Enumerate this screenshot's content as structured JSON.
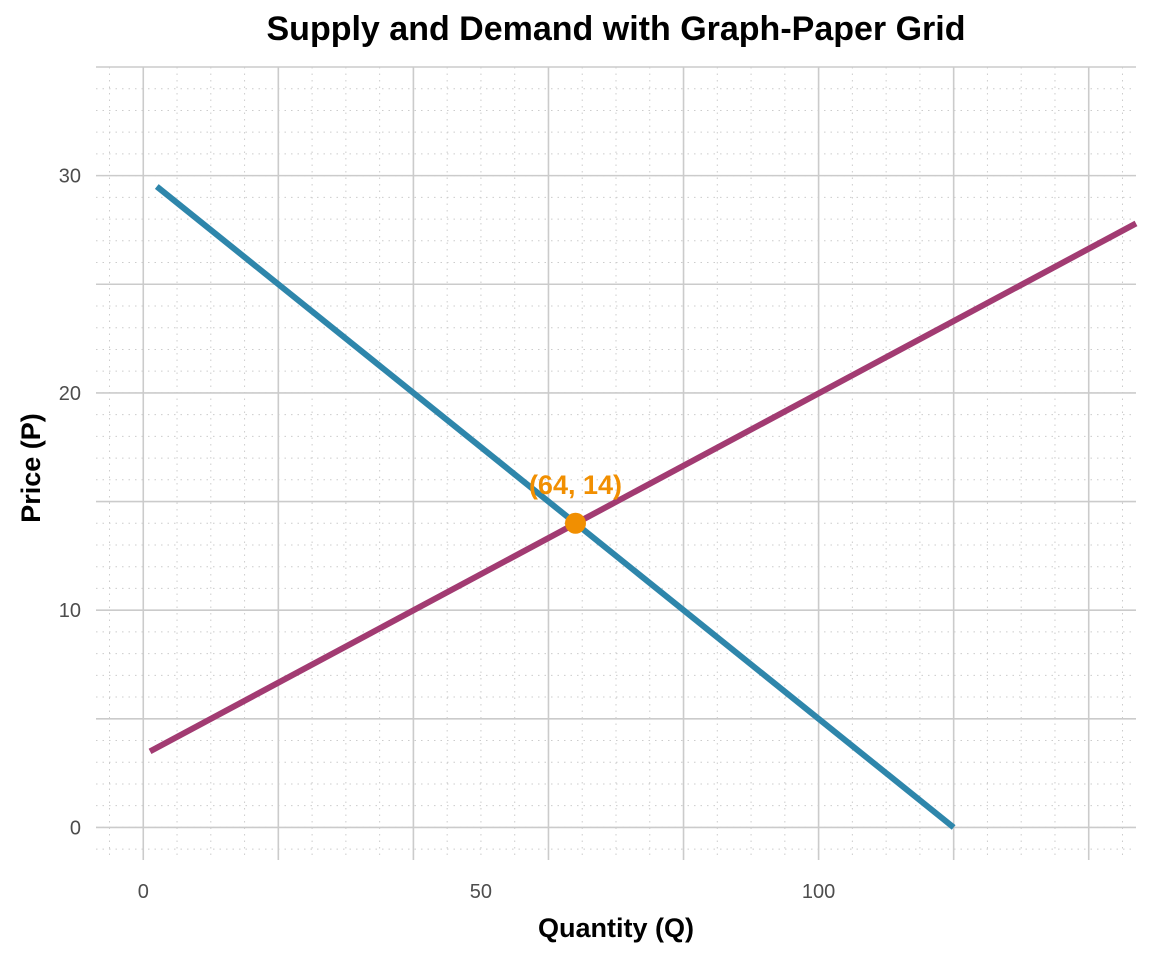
{
  "chart_data": {
    "type": "line",
    "title": "Supply and Demand with Graph-Paper Grid",
    "xlabel": "Quantity (Q)",
    "ylabel": "Price (P)",
    "xlim": [
      -7,
      147
    ],
    "ylim": [
      -1.5,
      35
    ],
    "x_ticks": [
      0,
      50,
      100
    ],
    "y_ticks": [
      0,
      10,
      20,
      30
    ],
    "grid": true,
    "grid_major_step": {
      "x": 20,
      "y": 5
    },
    "grid_minor_step": {
      "x": 5,
      "y": 1
    },
    "series": [
      {
        "x": [
          2,
          120
        ],
        "y": [
          29.5,
          0
        ],
        "color": "#2e86ab"
      },
      {
        "x": [
          1,
          147
        ],
        "y": [
          3.5,
          27.8
        ],
        "color": "#a23b72"
      }
    ],
    "annotations": [
      {
        "text": "(64, 14)",
        "x": 64,
        "y": 14,
        "color": "#f18f01"
      }
    ]
  }
}
